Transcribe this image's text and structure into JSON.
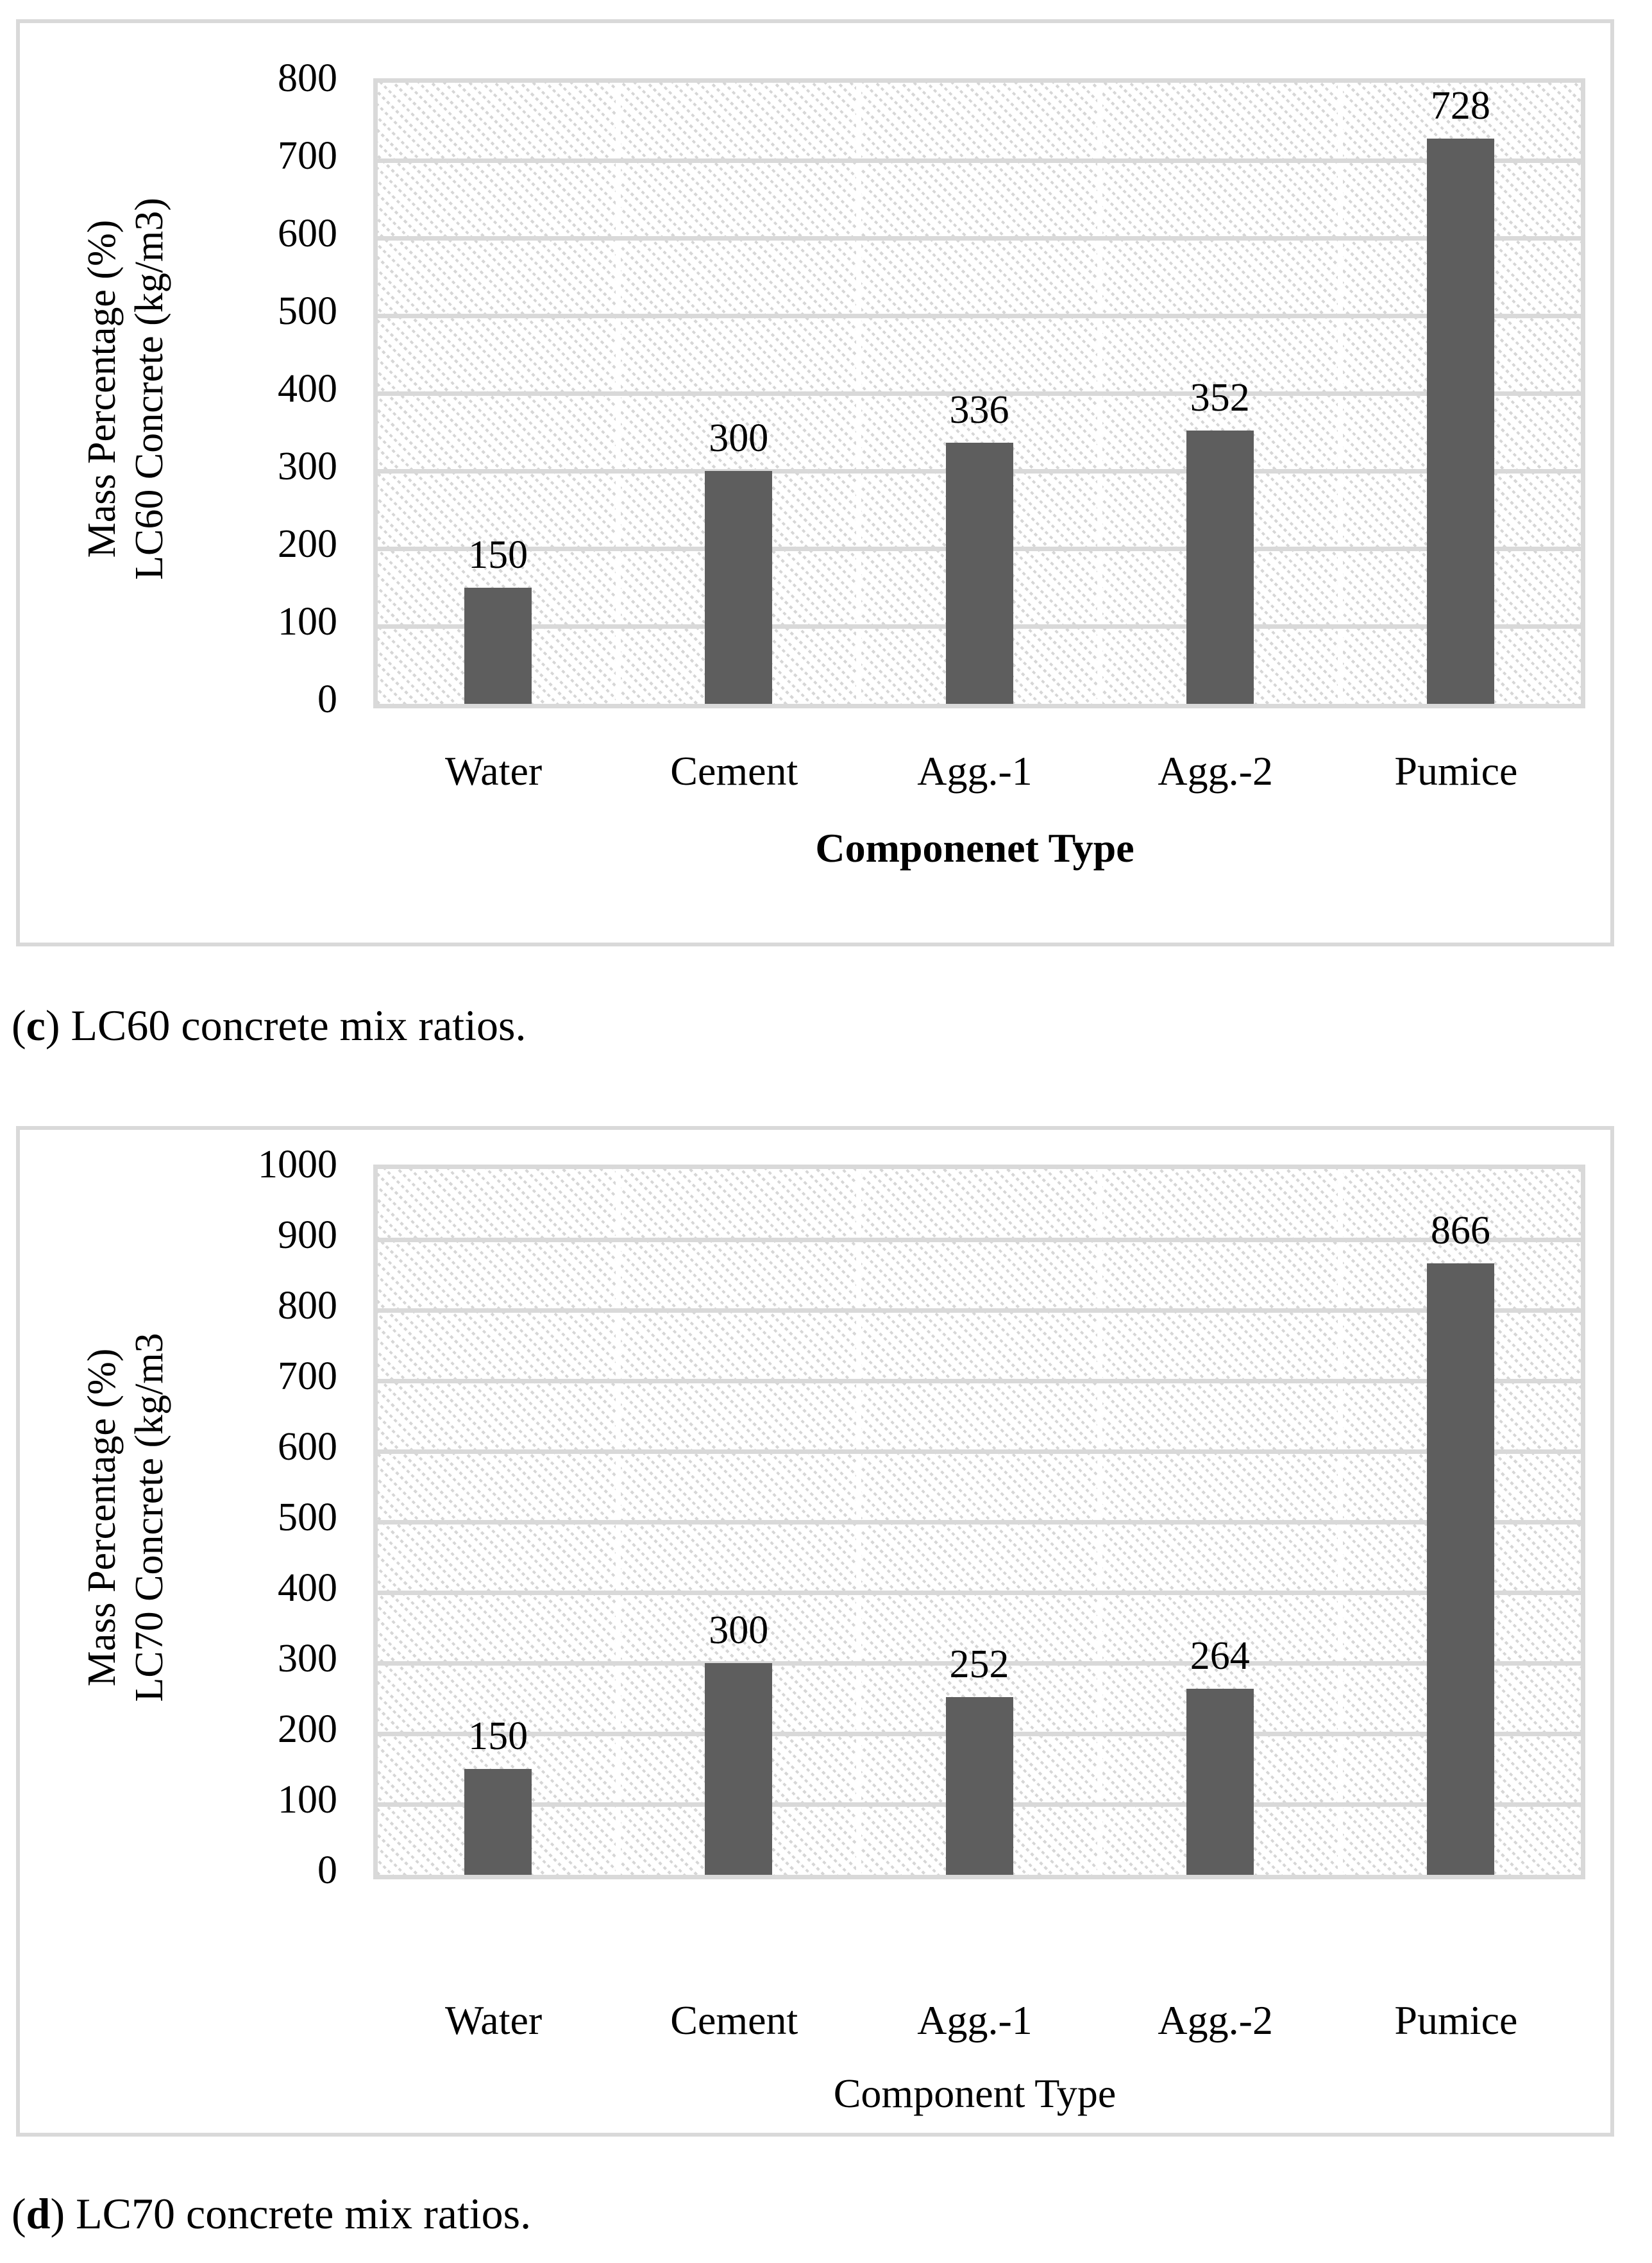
{
  "colors": {
    "bar": "#5e5e5e",
    "gridline": "#d9d9d9",
    "box_border": "#d9d9d9",
    "hatch_line": "#d6d6d6",
    "text": "#000000",
    "background": "#ffffff"
  },
  "chart_data": [
    {
      "type": "bar",
      "panel": "c",
      "title": "",
      "categories": [
        "Water",
        "Cement",
        "Agg.-1",
        "Agg.-2",
        "Pumice"
      ],
      "values": [
        150,
        300,
        336,
        352,
        728
      ],
      "data_labels": [
        "150",
        "300",
        "336",
        "352",
        "728"
      ],
      "xlabel": "Componenet Type",
      "ylabel_line1": "Mass Percentage (%)",
      "ylabel_line2": "LC60 Concrete (kg/m3)",
      "ylim": [
        0,
        800
      ],
      "ytick_step": 100,
      "yticks": [
        "0",
        "100",
        "200",
        "300",
        "400",
        "500",
        "600",
        "700",
        "800"
      ],
      "grid": true,
      "legend": "none",
      "bar_color": "#5e5e5e",
      "plot_fill": "light-downward-diagonal-hatch"
    },
    {
      "type": "bar",
      "panel": "d",
      "title": "",
      "categories": [
        "Water",
        "Cement",
        "Agg.-1",
        "Agg.-2",
        "Pumice"
      ],
      "values": [
        150,
        300,
        252,
        264,
        866
      ],
      "data_labels": [
        "150",
        "300",
        "252",
        "264",
        "866"
      ],
      "xlabel": "Component Type",
      "ylabel_line1": "Mass Percentage (%)",
      "ylabel_line2": "LC70 Concrete (kg/m3",
      "ylim": [
        0,
        1000
      ],
      "ytick_step": 100,
      "yticks": [
        "0",
        "100",
        "200",
        "300",
        "400",
        "500",
        "600",
        "700",
        "800",
        "900",
        "1000"
      ],
      "grid": true,
      "legend": "none",
      "bar_color": "#5e5e5e",
      "plot_fill": "light-downward-diagonal-hatch"
    }
  ],
  "captions": {
    "c": {
      "open": "(",
      "letter": "c",
      "rest": ") LC60 concrete mix ratios."
    },
    "d": {
      "open": "(",
      "letter": "d",
      "rest": ") LC70 concrete mix ratios."
    }
  }
}
